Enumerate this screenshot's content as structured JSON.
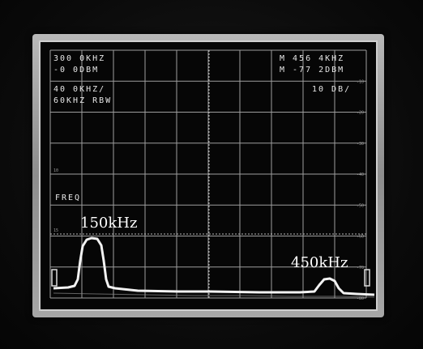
{
  "readouts": {
    "center_freq": "300 0KHZ",
    "ref_level": "-0 0DBM",
    "span_div": "40 0KHZ/",
    "rbw": "60KHZ RBW",
    "marker_freq": "M 456 4KHZ",
    "marker_level": "M -77 2DBM",
    "scale": "10 DB/",
    "freq_label": "FREQ"
  },
  "scale_marks": [
    "-10",
    "-20",
    "-30",
    "-40",
    "-50",
    "-60",
    "-70",
    "-80",
    "-90"
  ],
  "left_marks": [
    "10",
    "15"
  ],
  "peaks": {
    "left_label": "150kHz",
    "right_label": "450kHz"
  },
  "colors": {
    "screen": "#060606",
    "grid": "#b8b8b8",
    "trace": "#f2f2f2",
    "bezel": "#a0a0a0"
  }
}
